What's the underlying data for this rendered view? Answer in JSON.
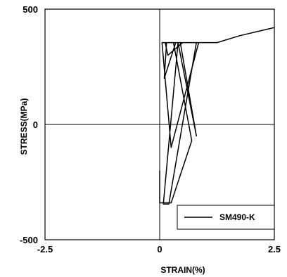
{
  "chart_data": {
    "type": "line",
    "title": "",
    "xlabel": "STRAIN(%)",
    "ylabel": "STRESS(MPa)",
    "xlim": [
      -2.5,
      2.5
    ],
    "ylim": [
      -500,
      500
    ],
    "x_ticks": [
      "-2.5",
      "0",
      "2.5"
    ],
    "y_ticks": [
      "500",
      "0",
      "-500"
    ],
    "grid": false,
    "zero_lines": true,
    "legend_position": "bottom-right",
    "line_color": "#000000",
    "series": [
      {
        "name": "SM490-K",
        "x": [
          0.0,
          0.0,
          0.25,
          0.7,
          0.3,
          0.05,
          0.25,
          0.85,
          0.35,
          0.1,
          0.15,
          0.4,
          0.8,
          0.45,
          0.12,
          0.18,
          0.5,
          0.85,
          0.4,
          0.08,
          0.2,
          0.8,
          1.25,
          1.75,
          2.5
        ],
        "y": [
          -200,
          -340,
          -340,
          -70,
          355,
          355,
          -100,
          355,
          355,
          200,
          355,
          355,
          -50,
          355,
          355,
          300,
          355,
          355,
          355,
          -345,
          -345,
          355,
          355,
          385,
          420
        ]
      }
    ]
  }
}
